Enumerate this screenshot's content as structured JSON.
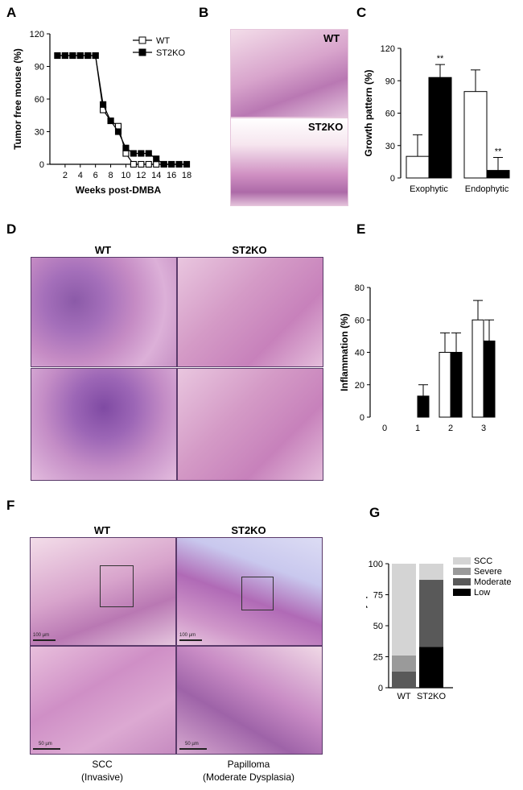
{
  "panels": {
    "A": "A",
    "B": "B",
    "C": "C",
    "D": "D",
    "E": "E",
    "F": "F",
    "G": "G"
  },
  "B": {
    "wt": "WT",
    "ko": "ST2KO"
  },
  "D": {
    "wt": "WT",
    "ko": "ST2KO"
  },
  "F": {
    "wt": "WT",
    "ko": "ST2KO",
    "scale_top_left": "100 µm",
    "scale_top_right": "100 µm",
    "scale_bottom_left": "50 µm",
    "scale_bottom_right": "50 µm",
    "caption_left_1": "SCC",
    "caption_left_2": "(Invasive)",
    "caption_right_1": "Papilloma",
    "caption_right_2": "(Moderate Dysplasia)"
  },
  "chart_data": [
    {
      "id": "A",
      "type": "line",
      "ylabel": "Tumor free mouse (%)",
      "xlabel": "Weeks post-DMBA",
      "ylim": [
        0,
        120
      ],
      "yticks": [
        0,
        30,
        60,
        90,
        120
      ],
      "xlim": [
        0,
        18
      ],
      "xticks": [
        2,
        4,
        6,
        8,
        10,
        12,
        14,
        16,
        18
      ],
      "legend_position": "top-right",
      "series": [
        {
          "name": "WT",
          "marker": "open-square",
          "x": [
            1,
            2,
            3,
            4,
            5,
            6,
            7,
            8,
            9,
            10,
            11,
            12,
            13,
            14,
            15,
            16,
            17,
            18
          ],
          "y": [
            100,
            100,
            100,
            100,
            100,
            100,
            50,
            40,
            35,
            10,
            0,
            0,
            0,
            0,
            0,
            0,
            0,
            0
          ]
        },
        {
          "name": "ST2KO",
          "marker": "filled-square",
          "x": [
            1,
            2,
            3,
            4,
            5,
            6,
            7,
            8,
            9,
            10,
            11,
            12,
            13,
            14,
            15,
            16,
            17,
            18
          ],
          "y": [
            100,
            100,
            100,
            100,
            100,
            100,
            55,
            40,
            30,
            15,
            10,
            10,
            10,
            5,
            0,
            0,
            0,
            0
          ]
        }
      ]
    },
    {
      "id": "C",
      "type": "bar",
      "ylabel": "Growth pattern (%)",
      "ylim": [
        0,
        120
      ],
      "yticks": [
        0,
        30,
        60,
        90,
        120
      ],
      "categories": [
        "Exophytic",
        "Endophytic"
      ],
      "series": [
        {
          "name": "WT",
          "fill": "white",
          "values": [
            20,
            80
          ],
          "errors": [
            20,
            20
          ]
        },
        {
          "name": "ST2KO",
          "fill": "black",
          "values": [
            93,
            7
          ],
          "errors": [
            12,
            12
          ]
        }
      ],
      "annotations": [
        "**",
        "**"
      ]
    },
    {
      "id": "E",
      "type": "bar",
      "ylabel": "Inflammation (%)",
      "ylim": [
        0,
        80
      ],
      "yticks": [
        0,
        20,
        40,
        60,
        80
      ],
      "categories": [
        "0",
        "1",
        "2",
        "3"
      ],
      "series": [
        {
          "name": "WT",
          "fill": "white",
          "values": [
            0,
            0,
            40,
            60
          ],
          "errors": [
            0,
            0,
            12,
            12
          ]
        },
        {
          "name": "ST2KO",
          "fill": "black",
          "values": [
            0,
            13,
            40,
            47
          ],
          "errors": [
            0,
            7,
            12,
            13
          ]
        }
      ]
    },
    {
      "id": "G",
      "type": "bar",
      "stacked": true,
      "ylabel": "% of mice with dysplasia",
      "ylim": [
        0,
        100
      ],
      "yticks": [
        0,
        25,
        50,
        75,
        100
      ],
      "categories": [
        "WT",
        "ST2KO"
      ],
      "legend_position": "right",
      "series": [
        {
          "name": "Low",
          "color": "#000000",
          "values": [
            0,
            33
          ]
        },
        {
          "name": "Moderate",
          "color": "#595959",
          "values": [
            13,
            54
          ]
        },
        {
          "name": "Severe",
          "color": "#9a9a9a",
          "values": [
            13,
            0
          ]
        },
        {
          "name": "SCC",
          "color": "#d4d4d4",
          "values": [
            74,
            13
          ]
        }
      ]
    }
  ]
}
